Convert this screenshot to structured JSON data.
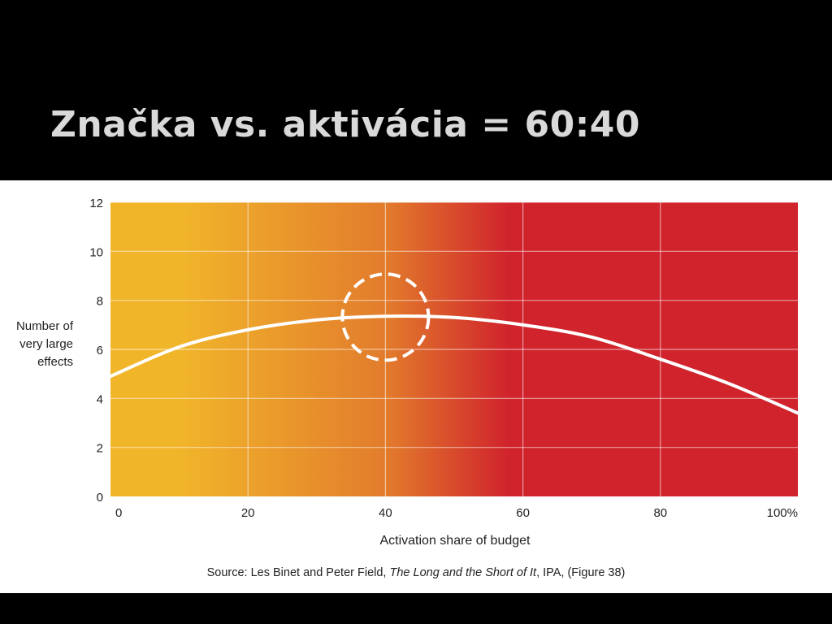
{
  "slide": {
    "title": "Značka vs. aktivácia = 60:40"
  },
  "chart_data": {
    "type": "line",
    "title": "",
    "xlabel": "Activation share of budget",
    "ylabel_lines": [
      "Number of",
      "very large",
      "effects"
    ],
    "xlim": [
      0,
      100
    ],
    "ylim": [
      0,
      12
    ],
    "x_ticks": [
      {
        "value": 0,
        "label": "0"
      },
      {
        "value": 20,
        "label": "20"
      },
      {
        "value": 40,
        "label": "40"
      },
      {
        "value": 60,
        "label": "60"
      },
      {
        "value": 80,
        "label": "80"
      },
      {
        "value": 100,
        "label": "100%"
      }
    ],
    "y_ticks": [
      {
        "value": 0,
        "label": "0"
      },
      {
        "value": 2,
        "label": "2"
      },
      {
        "value": 4,
        "label": "4"
      },
      {
        "value": 6,
        "label": "6"
      },
      {
        "value": 8,
        "label": "8"
      },
      {
        "value": 10,
        "label": "10"
      },
      {
        "value": 12,
        "label": "12"
      }
    ],
    "grid": true,
    "background_gradient": [
      "#f1b52a",
      "#e27c2c",
      "#d0232c"
    ],
    "series": [
      {
        "color": "#ffffff",
        "x": [
          0,
          10,
          20,
          30,
          40,
          50,
          60,
          70,
          80,
          90,
          100
        ],
        "y": [
          4.9,
          6.1,
          6.8,
          7.2,
          7.35,
          7.3,
          7.0,
          6.5,
          5.6,
          4.6,
          3.4
        ]
      }
    ],
    "annotation": {
      "type": "dashed-circle",
      "x": 40,
      "y": 7.35,
      "color": "#ffffff"
    }
  },
  "source": {
    "prefix": "Source: Les Binet and Peter Field, ",
    "italic": "The Long and the Short of It",
    "suffix": ", IPA, (Figure 38)"
  }
}
